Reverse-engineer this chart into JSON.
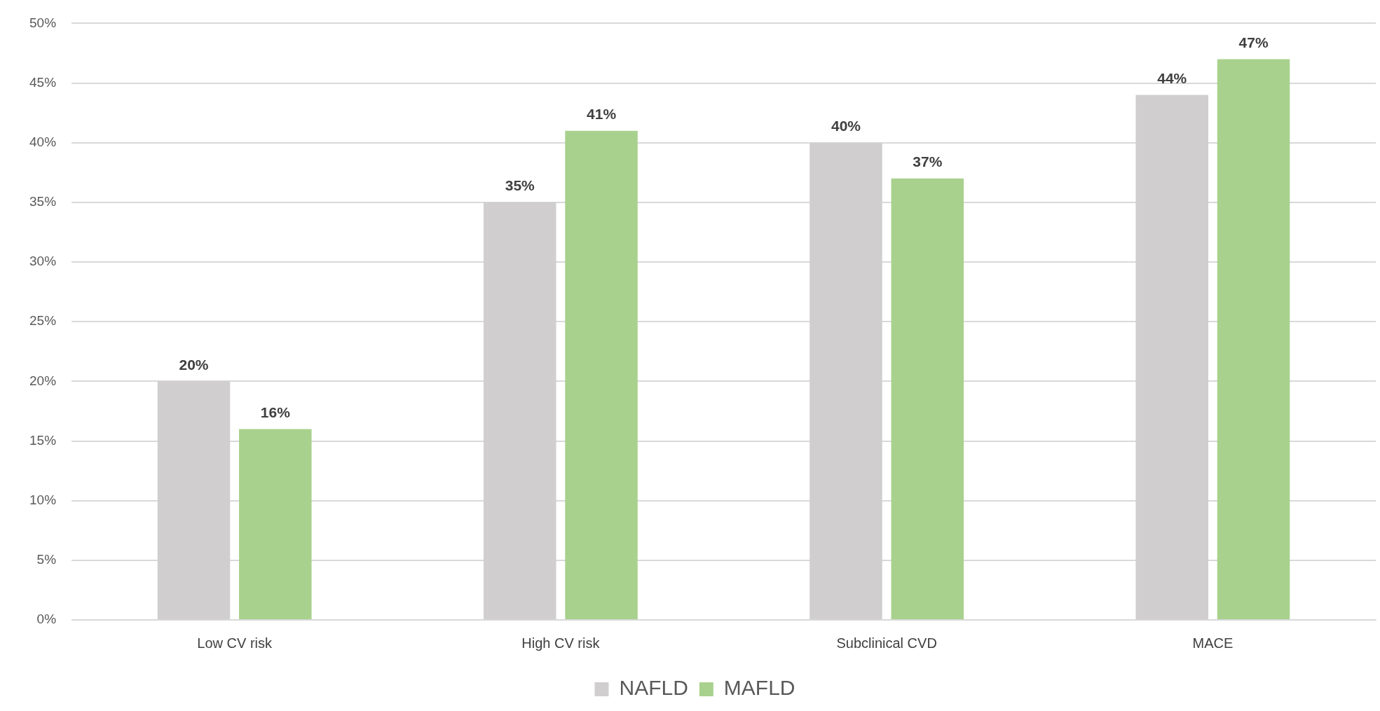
{
  "chart_data": {
    "type": "bar",
    "categories": [
      "Low CV risk",
      "High CV risk",
      "Subclinical CVD",
      "MACE"
    ],
    "series": [
      {
        "name": "NAFLD",
        "color": "#d0cece",
        "values": [
          20,
          35,
          40,
          44
        ],
        "value_labels": [
          "20%",
          "35%",
          "40%",
          "44%"
        ]
      },
      {
        "name": "MAFLD",
        "color": "#a9d18e",
        "values": [
          16,
          41,
          37,
          47
        ],
        "value_labels": [
          "16%",
          "41%",
          "37%",
          "47%"
        ]
      }
    ],
    "ylim": [
      0,
      50
    ],
    "yticks": [
      {
        "value": 0,
        "label": "0%"
      },
      {
        "value": 5,
        "label": "5%"
      },
      {
        "value": 10,
        "label": "10%"
      },
      {
        "value": 15,
        "label": "15%"
      },
      {
        "value": 20,
        "label": "20%"
      },
      {
        "value": 25,
        "label": "25%"
      },
      {
        "value": 30,
        "label": "30%"
      },
      {
        "value": 35,
        "label": "35%"
      },
      {
        "value": 40,
        "label": "40%"
      },
      {
        "value": 45,
        "label": "45%"
      },
      {
        "value": 50,
        "label": "50%"
      }
    ],
    "grid": "y",
    "legend": "bottom"
  }
}
